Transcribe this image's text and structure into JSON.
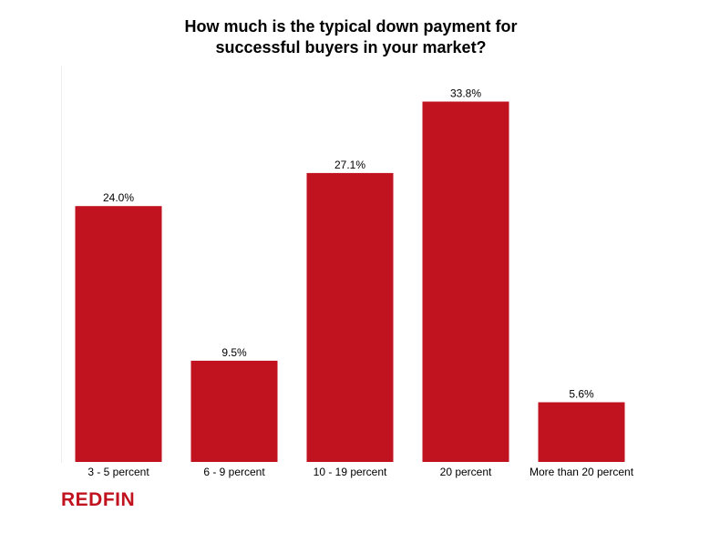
{
  "chart_data": {
    "type": "bar",
    "title_lines": [
      "How much is the typical down payment for",
      "successful buyers in your market?"
    ],
    "categories": [
      "3 - 5 percent",
      "6 - 9 percent",
      "10 - 19 percent",
      "20 percent",
      "More than 20 percent"
    ],
    "values": [
      24.0,
      9.5,
      27.1,
      33.8,
      5.6
    ],
    "value_labels": [
      "24.0%",
      "9.5%",
      "27.1%",
      "33.8%",
      "5.6%"
    ],
    "ylim": [
      0,
      40
    ],
    "xlabel": "",
    "ylabel": "",
    "grid": false,
    "legend": "none",
    "bar_color": "#c0121f"
  },
  "brand": {
    "name": "REDFIN",
    "color": "#c0121f"
  }
}
